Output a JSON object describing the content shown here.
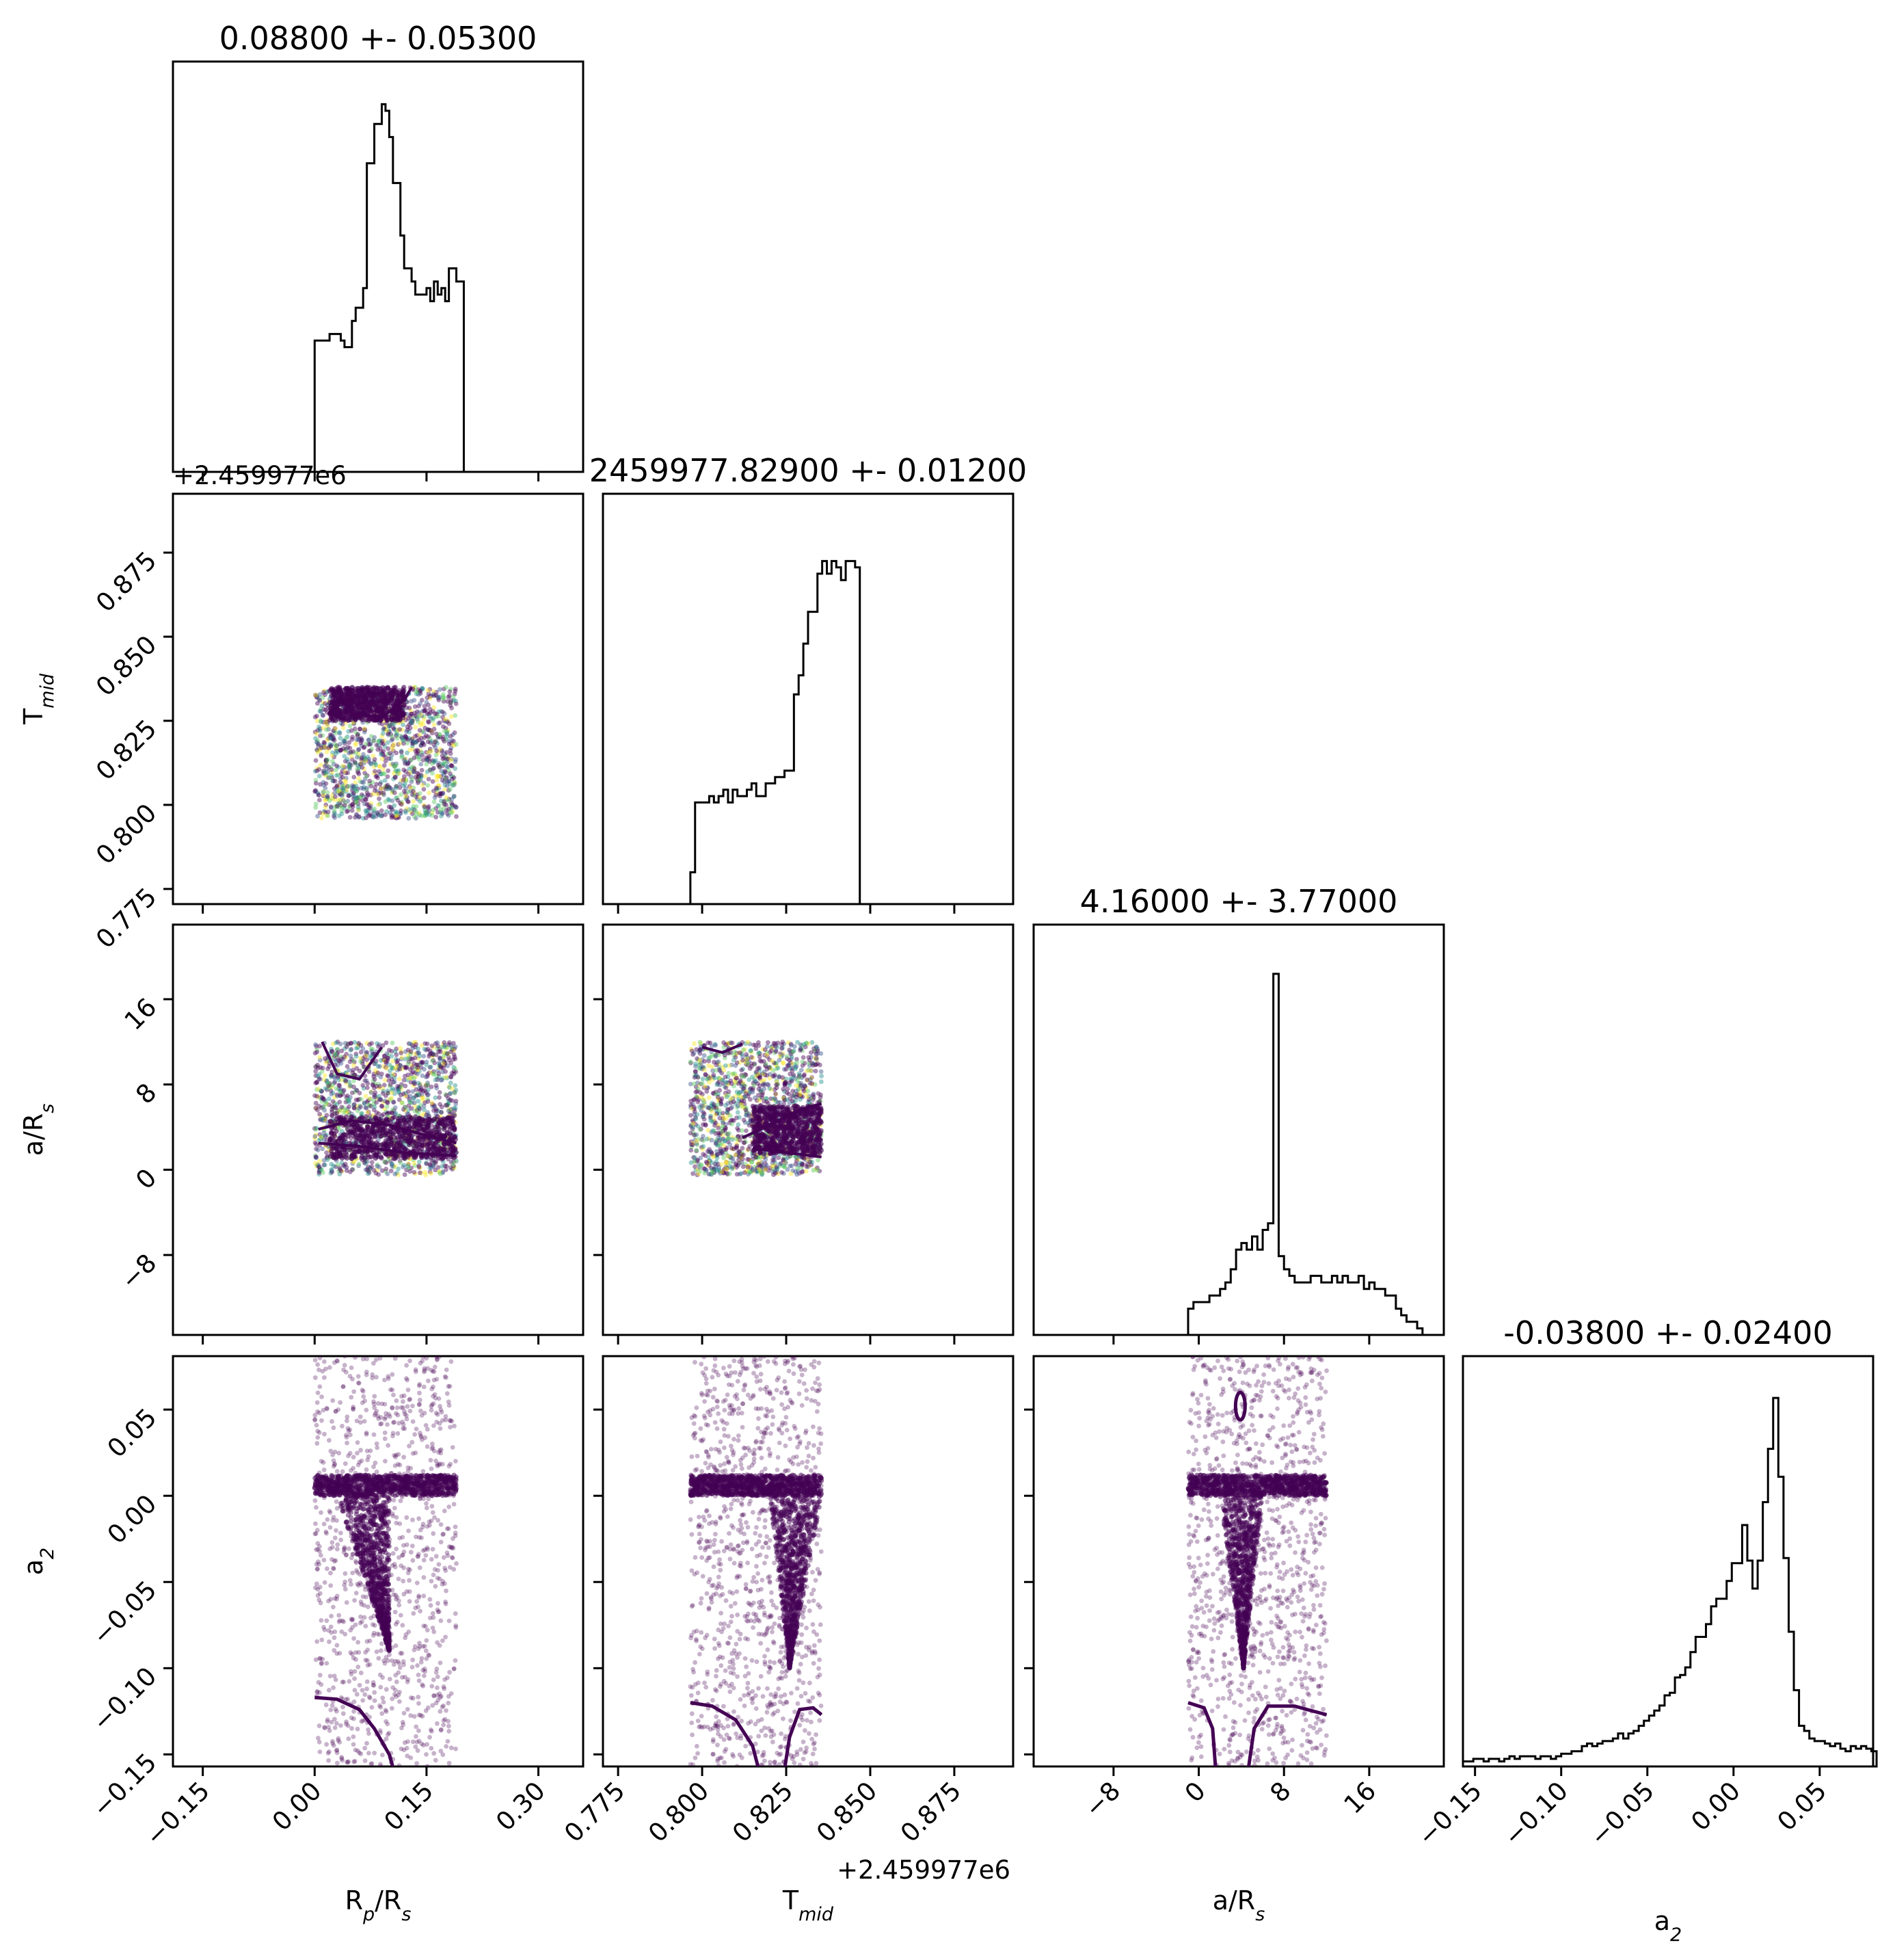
{
  "figure": {
    "type": "corner-plot",
    "parameters": [
      {
        "label": "R$_p$/R$_s$",
        "label_main": "R",
        "label_sub": "p",
        "label_tail": "/R",
        "label_sub2": "s",
        "title": "0.08800 +- 0.05300",
        "range": [
          -0.19,
          0.36
        ],
        "ticks": [
          -0.15,
          0.0,
          0.15,
          0.3
        ],
        "tick_labels": [
          "−0.15",
          "0.00",
          "0.15",
          "0.30"
        ],
        "offset_text": ""
      },
      {
        "label": "T$_{mid}$",
        "label_main": "T",
        "label_sub": "mid",
        "label_tail": "",
        "label_sub2": "",
        "title": "2459977.82900 +- 0.01200",
        "range": [
          0.7705,
          0.8925
        ],
        "ticks": [
          0.775,
          0.8,
          0.825,
          0.85,
          0.875
        ],
        "tick_labels": [
          "0.775",
          "0.800",
          "0.825",
          "0.850",
          "0.875"
        ],
        "offset_text": "+2.459977e6"
      },
      {
        "label": "a/R$_s$",
        "label_main": "a/R",
        "label_sub": "s",
        "label_tail": "",
        "label_sub2": "",
        "title": "4.16000 +- 3.77000",
        "range": [
          -15.5,
          23.0
        ],
        "ticks": [
          -8,
          0,
          8,
          16
        ],
        "tick_labels": [
          "−8",
          "0",
          "8",
          "16"
        ],
        "offset_text": ""
      },
      {
        "label": "$a_2$",
        "label_main": "a",
        "label_sub": "2",
        "label_tail": "",
        "label_sub2": "",
        "title": "-0.03800 +- 0.02400",
        "range": [
          -0.157,
          0.081
        ],
        "ticks": [
          -0.15,
          -0.1,
          -0.05,
          0.0,
          0.05
        ],
        "tick_labels": [
          "−0.15",
          "−0.10",
          "−0.05",
          "0.00",
          "0.05"
        ],
        "offset_text": ""
      }
    ]
  },
  "chart_data": {
    "type": "corner",
    "n_params": 4,
    "colors": {
      "hist_line": "#000000",
      "scatter": "#440154",
      "contour": "#440154",
      "axes": "#000000"
    },
    "histograms": [
      {
        "param": "R$_p$/R$_s$",
        "edges_start": 0.0,
        "bin_width": 0.005,
        "counts": [
          2,
          2,
          2,
          2,
          2.1,
          2.1,
          2.1,
          2,
          1.9,
          1.9,
          2.3,
          2.5,
          2.5,
          2.8,
          4.7,
          4.7,
          5.3,
          5.3,
          5.6,
          5.5,
          5.1,
          4.4,
          4.4,
          3.6,
          3.1,
          3.1,
          2.9,
          2.7,
          2.7,
          2.7,
          2.8,
          2.6,
          2.9,
          2.7,
          2.8,
          2.6,
          3.1,
          3.1,
          2.9,
          2.9
        ],
        "ymax": 6.0,
        "range": [
          -0.19,
          0.36
        ]
      },
      {
        "param": "T$_{mid}$",
        "edges_start": 0.7965,
        "bin_width": 0.0014,
        "counts": [
          0.5,
          1.6,
          1.6,
          1.6,
          1.7,
          1.6,
          1.7,
          1.8,
          1.6,
          1.8,
          1.7,
          1.7,
          1.8,
          1.9,
          1.7,
          1.7,
          1.9,
          1.9,
          2.0,
          2.0,
          2.1,
          2.1,
          3.3,
          3.6,
          4.1,
          4.6,
          4.6,
          5.2,
          5.4,
          5.2,
          5.4,
          5.3,
          5.1,
          5.4,
          5.4,
          5.3
        ],
        "ymax": 6.2,
        "range": [
          0.7705,
          0.8925
        ]
      },
      {
        "param": "a/R$_s$",
        "edges_start": -1.0,
        "bin_width": 0.5,
        "counts": [
          0.4,
          0.5,
          0.5,
          0.5,
          0.6,
          0.6,
          0.7,
          0.8,
          1.0,
          1.3,
          1.4,
          1.3,
          1.5,
          1.3,
          1.6,
          1.7,
          5.5,
          1.2,
          1.0,
          0.9,
          0.8,
          0.8,
          0.8,
          0.9,
          0.9,
          0.8,
          0.8,
          0.9,
          0.8,
          0.9,
          0.8,
          0.8,
          0.9,
          0.7,
          0.8,
          0.7,
          0.7,
          0.6,
          0.6,
          0.4,
          0.3,
          0.2,
          0.2,
          0.1
        ],
        "ymax": 6.0,
        "range": [
          -15.5,
          23.0
        ]
      },
      {
        "param": "$a_2$",
        "edges_start": -0.157,
        "bin_width": 0.003,
        "counts": [
          0.2,
          0.2,
          0.3,
          0.3,
          0.2,
          0.3,
          0.3,
          0.2,
          0.3,
          0.4,
          0.3,
          0.4,
          0.4,
          0.4,
          0.3,
          0.4,
          0.4,
          0.3,
          0.4,
          0.5,
          0.5,
          0.6,
          0.6,
          0.8,
          0.9,
          0.8,
          0.9,
          1.0,
          1.0,
          1.1,
          1.3,
          1.1,
          1.3,
          1.4,
          1.6,
          1.8,
          2.0,
          2.2,
          2.4,
          2.8,
          2.9,
          3.5,
          3.6,
          3.9,
          4.5,
          5.1,
          5.1,
          5.6,
          6.3,
          6.6,
          6.6,
          7.3,
          8.0,
          8.0,
          9.5,
          8.1,
          7.0,
          8.1,
          10.4,
          12.5,
          14.5,
          11.4,
          8.2,
          5.3,
          3.0,
          1.6,
          1.4,
          1.1,
          1.0,
          1.0,
          0.9,
          0.8,
          0.9,
          0.7,
          0.6,
          0.8,
          0.7,
          0.8,
          0.7,
          0.6
        ],
        "ymax": 15.5,
        "range": [
          -0.157,
          0.081
        ]
      }
    ],
    "scatter_panels": [
      {
        "x_param": "R$_p$/R$_s$",
        "y_param": "T$_{mid}$",
        "x_support": [
          0.0,
          0.19
        ],
        "y_support": [
          0.796,
          0.835
        ],
        "dense_region": {
          "x": [
            0.02,
            0.12
          ],
          "y": [
            0.825,
            0.835
          ]
        }
      },
      {
        "x_param": "R$_p$/R$_s$",
        "y_param": "a/R$_s$",
        "x_support": [
          0.0,
          0.19
        ],
        "y_support": [
          -0.5,
          12.0
        ],
        "dense_region": {
          "x": [
            0.02,
            0.19
          ],
          "y": [
            1.0,
            5.0
          ]
        }
      },
      {
        "x_param": "T$_{mid}$",
        "y_param": "a/R$_s$",
        "x_support": [
          0.7965,
          0.8355
        ],
        "y_support": [
          -0.5,
          12.0
        ],
        "dense_region": {
          "x": [
            0.815,
            0.8355
          ],
          "y": [
            1.5,
            6.0
          ]
        }
      },
      {
        "x_param": "R$_p$/R$_s$",
        "y_param": "$a_2$",
        "x_support": [
          0.0,
          0.19
        ],
        "y_support": [
          -0.157,
          0.081
        ],
        "dense_band": {
          "y": [
            0.0,
            0.012
          ]
        },
        "dense_wedge": {
          "top_x": [
            0.03,
            0.1
          ],
          "apex": [
            0.1,
            -0.09
          ]
        }
      },
      {
        "x_param": "T$_{mid}$",
        "y_param": "$a_2$",
        "x_support": [
          0.7965,
          0.8355
        ],
        "y_support": [
          -0.157,
          0.081
        ],
        "dense_band": {
          "y": [
            0.0,
            0.012
          ]
        },
        "dense_wedge": {
          "top_x": [
            0.82,
            0.8355
          ],
          "apex": [
            0.826,
            -0.1
          ]
        }
      },
      {
        "x_param": "a/R$_s$",
        "y_param": "$a_2$",
        "x_support": [
          -1.0,
          12.0
        ],
        "y_support": [
          -0.157,
          0.081
        ],
        "dense_band": {
          "y": [
            0.0,
            0.012
          ]
        },
        "dense_wedge": {
          "top_x": [
            2.0,
            6.0
          ],
          "apex": [
            4.2,
            -0.1
          ]
        }
      }
    ]
  }
}
